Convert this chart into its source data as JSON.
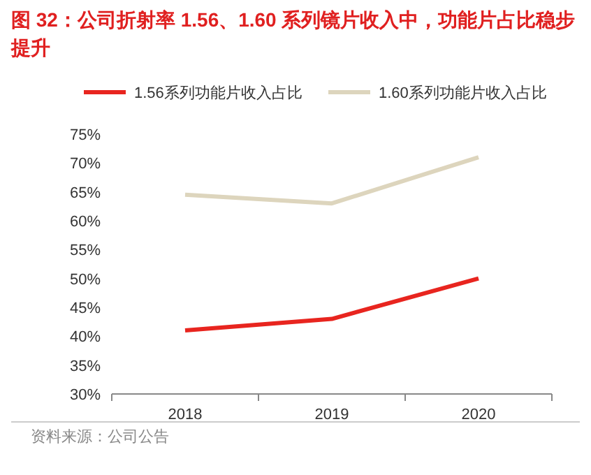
{
  "chart_data": {
    "type": "line",
    "title": "图 32：公司折射率 1.56、1.60 系列镜片收入中，功能片占比稳步提升",
    "categories": [
      "2018",
      "2019",
      "2020"
    ],
    "series": [
      {
        "name": "1.56系列功能片收入占比",
        "color": "#e8251f",
        "values": [
          41,
          43,
          50
        ]
      },
      {
        "name": "1.60系列功能片收入占比",
        "color": "#ddd5bd",
        "values": [
          64.5,
          63,
          71
        ]
      }
    ],
    "ylim": [
      30,
      75
    ],
    "yticks": [
      {
        "value": 30,
        "label": "30%"
      },
      {
        "value": 35,
        "label": "35%"
      },
      {
        "value": 40,
        "label": "40%"
      },
      {
        "value": 45,
        "label": "45%"
      },
      {
        "value": 50,
        "label": "50%"
      },
      {
        "value": 55,
        "label": "55%"
      },
      {
        "value": 60,
        "label": "60%"
      },
      {
        "value": 65,
        "label": "65%"
      },
      {
        "value": 70,
        "label": "70%"
      },
      {
        "value": 75,
        "label": "75%"
      }
    ],
    "legend": "top",
    "grid": false,
    "marker": "none",
    "line_style": "solid",
    "annotations": [
      "资料来源：公司公告"
    ]
  }
}
